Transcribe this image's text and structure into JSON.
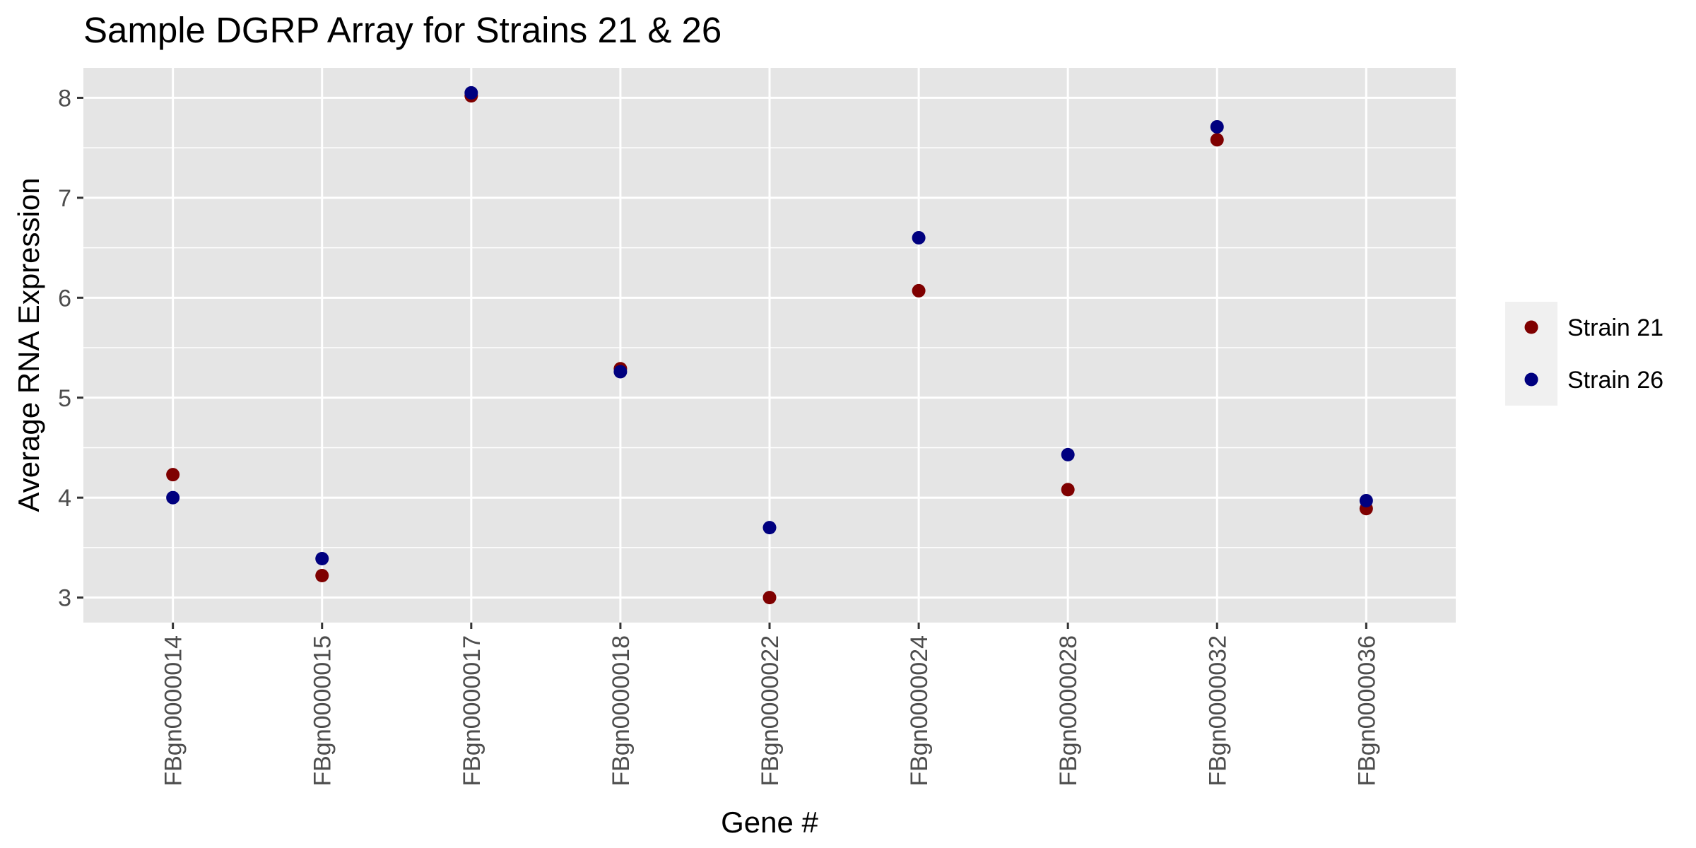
{
  "chart_data": {
    "type": "scatter",
    "title": "Sample DGRP Array for Strains 21 & 26",
    "xlabel": "Gene #",
    "ylabel": "Average RNA Expression",
    "categories": [
      "FBgn0000014",
      "FBgn0000015",
      "FBgn0000017",
      "FBgn0000018",
      "FBgn0000022",
      "FBgn0000024",
      "FBgn0000028",
      "FBgn0000032",
      "FBgn0000036"
    ],
    "series": [
      {
        "name": "Strain 21",
        "color": "#7f0000",
        "values": [
          4.23,
          3.22,
          8.02,
          5.29,
          3.0,
          6.07,
          4.08,
          7.58,
          3.89
        ]
      },
      {
        "name": "Strain 26",
        "color": "#00007f",
        "values": [
          4.0,
          3.39,
          8.05,
          5.26,
          3.7,
          6.6,
          4.43,
          7.71,
          3.97
        ]
      }
    ],
    "ylim": [
      2.75,
      8.3
    ],
    "yticks": [
      3,
      4,
      5,
      6,
      7,
      8
    ],
    "grid": true,
    "legend_position": "right",
    "panel_background": "#e5e5e5",
    "gridline_color": "#ffffff",
    "legend_background": "#f0f0f0"
  }
}
